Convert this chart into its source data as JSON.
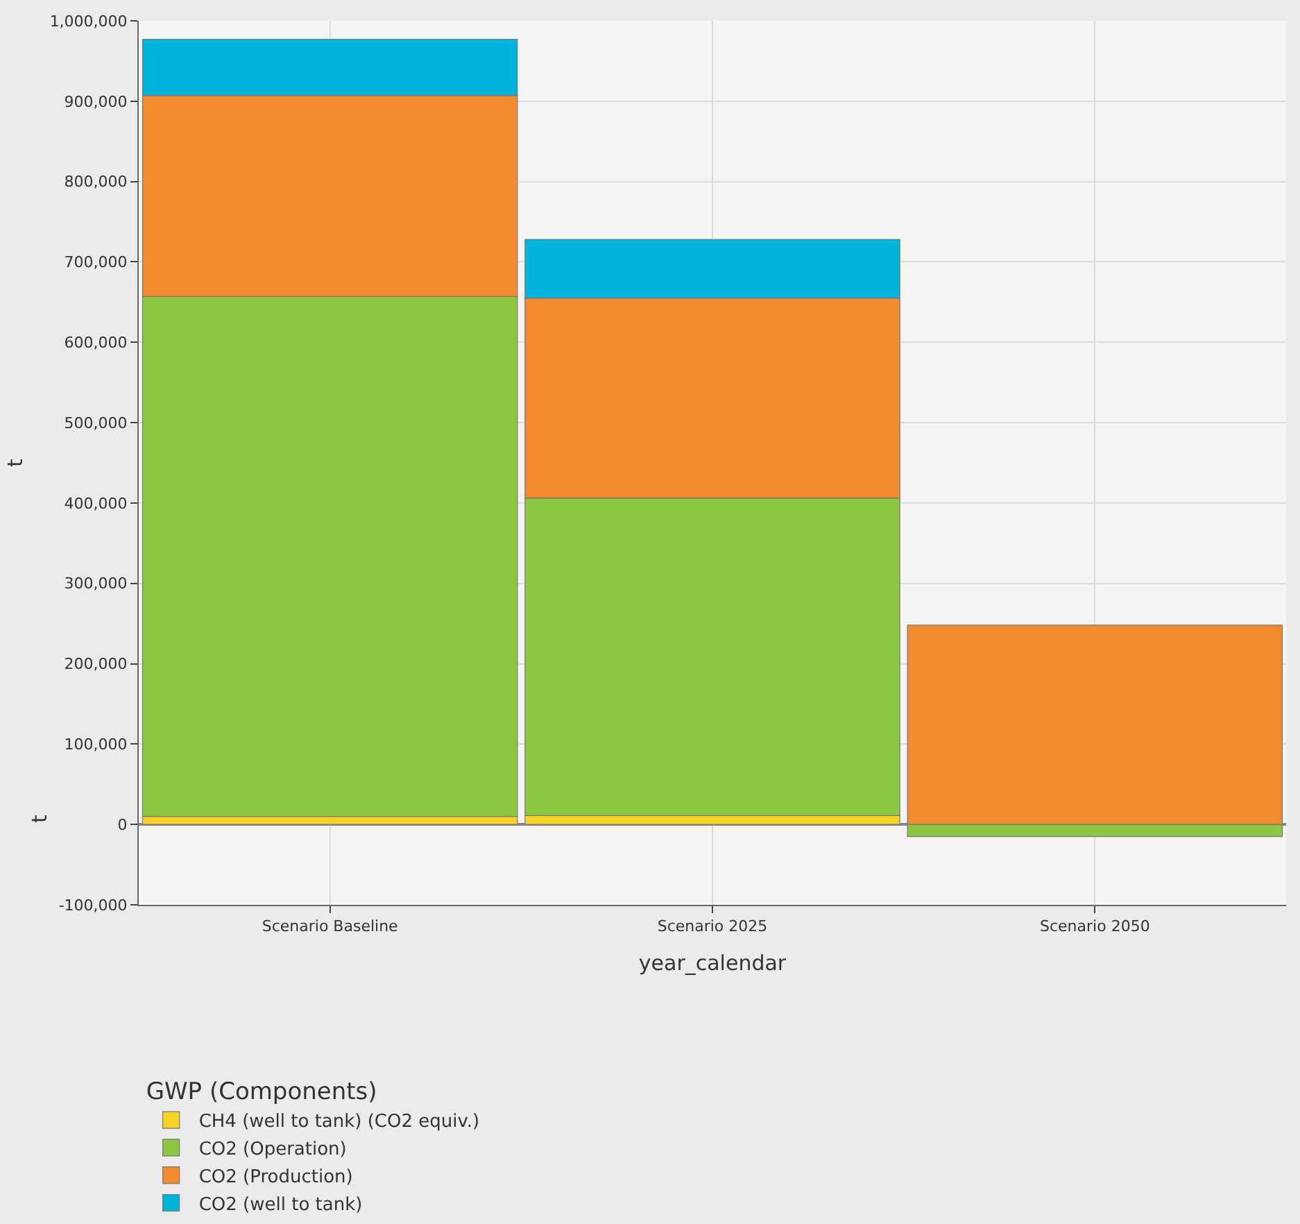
{
  "chart_data": {
    "type": "bar",
    "stacked": true,
    "xlabel": "year_calendar",
    "ylabel": "t",
    "legend_title": "GWP (Components)",
    "legend": "bottom",
    "grid": true,
    "categories": [
      "Scenario Baseline",
      "Scenario 2025",
      "Scenario 2050"
    ],
    "series": [
      {
        "name": "CH4 (well to tank) (CO2 equiv.)",
        "color": "#f5d327",
        "values": [
          10000,
          11000,
          null
        ]
      },
      {
        "name": "CO2 (Operation)",
        "color": "#8dc63f",
        "values": [
          647000,
          395000,
          -15000
        ]
      },
      {
        "name": "CO2 (Production)",
        "color": "#f28a30",
        "values": [
          250000,
          249000,
          248000
        ]
      },
      {
        "name": "CO2 (well to tank)",
        "color": "#00b4dc",
        "values": [
          70000,
          73000,
          null
        ]
      }
    ],
    "ylim": [
      -100000,
      1000000
    ],
    "yticks": [
      {
        "value": -100000,
        "label": "-100,000"
      },
      {
        "value": 0,
        "label": "0"
      },
      {
        "value": 100000,
        "label": "100,000"
      },
      {
        "value": 200000,
        "label": "200,000"
      },
      {
        "value": 300000,
        "label": "300,000"
      },
      {
        "value": 400000,
        "label": "400,000"
      },
      {
        "value": 500000,
        "label": "500,000"
      },
      {
        "value": 600000,
        "label": "600,000"
      },
      {
        "value": 700000,
        "label": "700,000"
      },
      {
        "value": 800000,
        "label": "800,000"
      },
      {
        "value": 900000,
        "label": "900,000"
      },
      {
        "value": 1000000,
        "label": "1,000,000"
      }
    ],
    "annotations": [
      "t"
    ]
  }
}
